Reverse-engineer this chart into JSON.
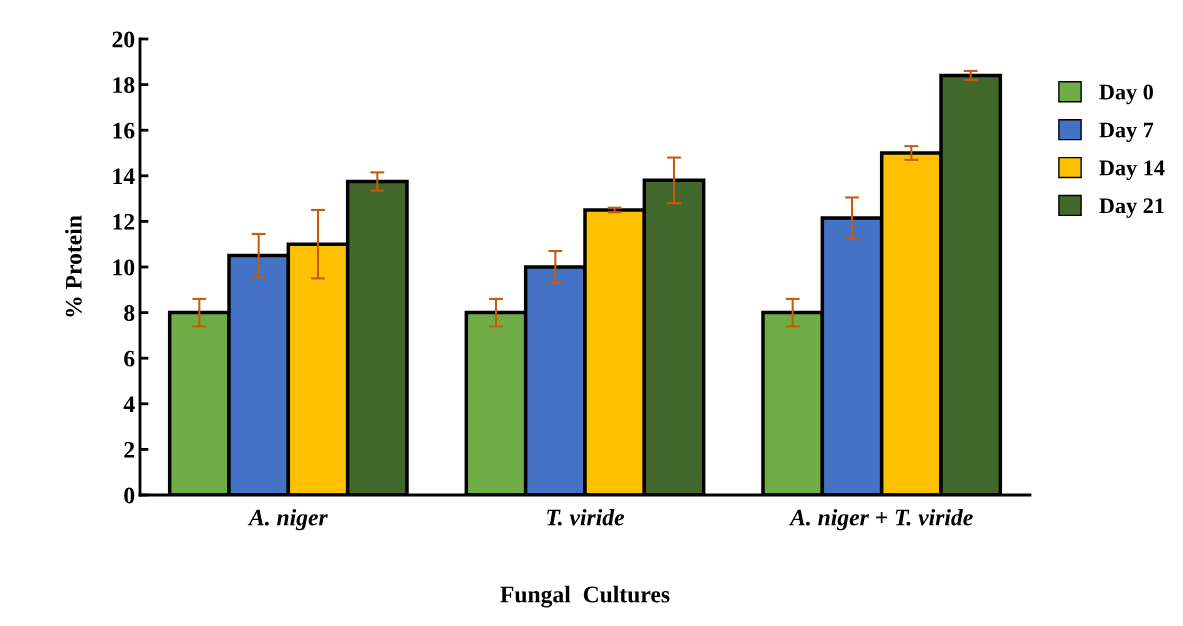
{
  "chart_data": {
    "type": "bar",
    "xlabel": "Fungal  Cultures",
    "ylabel": "% Protein",
    "categories": [
      "A. niger",
      "T. viride",
      "A. niger + T. viride"
    ],
    "series": [
      {
        "name": "Day 0",
        "color": "#70ad47",
        "values": [
          8,
          8,
          8
        ],
        "errors": [
          0.6,
          0.6,
          0.6
        ]
      },
      {
        "name": "Day 7",
        "color": "#4472c4",
        "values": [
          10.5,
          10,
          12.15
        ],
        "errors": [
          0.95,
          0.7,
          0.9
        ]
      },
      {
        "name": "Day 14",
        "color": "#ffc000",
        "values": [
          11,
          12.5,
          15
        ],
        "errors": [
          1.5,
          0.1,
          0.3
        ]
      },
      {
        "name": "Day 21",
        "color": "#43682b",
        "values": [
          13.75,
          13.8,
          18.4
        ],
        "errors": [
          0.4,
          1.0,
          0.2
        ]
      }
    ],
    "ylim": [
      0,
      20
    ],
    "yticks": [
      0,
      2,
      4,
      6,
      8,
      10,
      12,
      14,
      16,
      18,
      20
    ],
    "grid": false,
    "legend": "right"
  }
}
